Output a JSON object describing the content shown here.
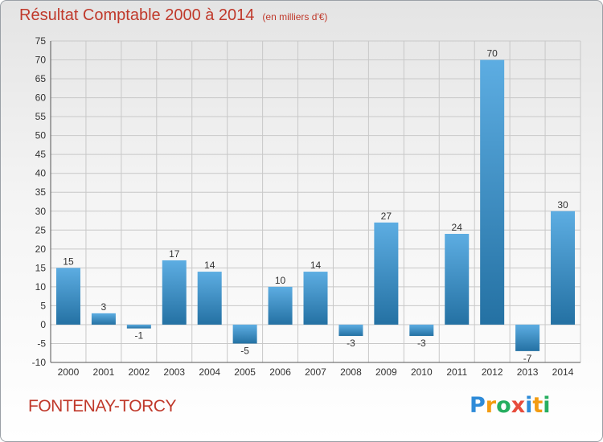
{
  "header": {
    "title": "Résultat Comptable 2000 à 2014",
    "unit": "(en milliers d'€)"
  },
  "footer": {
    "commune": "FONTENAY-TORCY",
    "logo_letters": [
      "P",
      "r",
      "o",
      "x",
      "i",
      "t",
      "i"
    ],
    "logo_colors": [
      "#2e8bd8",
      "#f39c12",
      "#27ae60",
      "#e74c3c",
      "#2e8bd8",
      "#f39c12",
      "#27ae60"
    ]
  },
  "colors": {
    "title": "#c0392b",
    "bar_light": "#5dade2",
    "bar_dark": "#2471a3",
    "grid": "#c8c8c8"
  },
  "chart_data": {
    "type": "bar",
    "categories": [
      "2000",
      "2001",
      "2002",
      "2003",
      "2004",
      "2005",
      "2006",
      "2007",
      "2008",
      "2009",
      "2010",
      "2011",
      "2012",
      "2013",
      "2014"
    ],
    "values": [
      15,
      3,
      -1,
      17,
      14,
      -5,
      10,
      14,
      -3,
      27,
      -3,
      24,
      70,
      -7,
      30
    ],
    "ylim": [
      -10,
      75
    ],
    "yticks": [
      -10,
      -5,
      0,
      5,
      10,
      15,
      20,
      25,
      30,
      35,
      40,
      45,
      50,
      55,
      60,
      65,
      70,
      75
    ],
    "grid": true,
    "title": "Résultat Comptable 2000 à 2014",
    "xlabel": "",
    "ylabel": ""
  }
}
